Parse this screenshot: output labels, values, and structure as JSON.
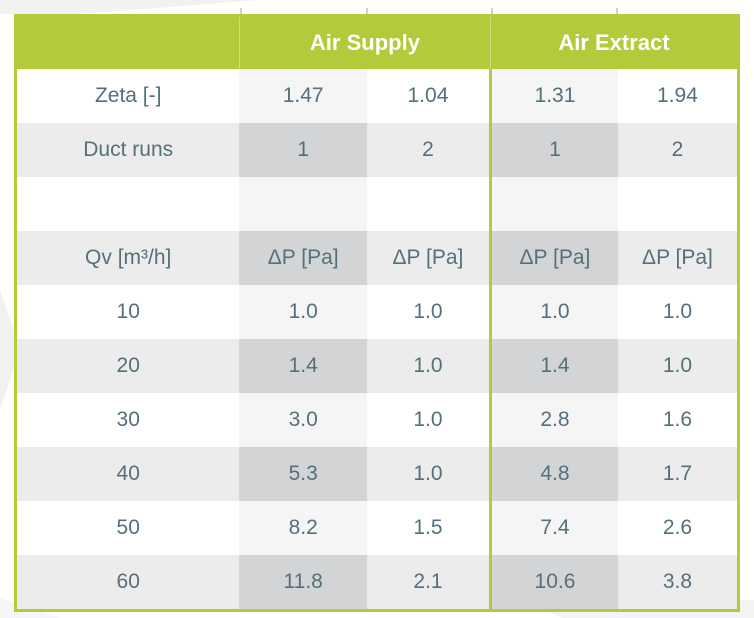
{
  "colors": {
    "lime": "#b5ca3b",
    "text": "#54707c",
    "header-text": "#ffffff",
    "row-light": "#ffffff",
    "row-light-tint": "#f5f5f5",
    "row-gray": "#ececec",
    "row-gray-tint": "#d2d4d5"
  },
  "table": {
    "header": {
      "supply": "Air Supply",
      "extract": "Air Extract"
    },
    "rows": [
      {
        "label": "Zeta [-]",
        "values": [
          "1.47",
          "1.04",
          "1.31",
          "1.94"
        ]
      },
      {
        "label": "Duct runs",
        "values": [
          "1",
          "2",
          "1",
          "2"
        ]
      },
      {
        "label": "",
        "values": [
          "",
          "",
          "",
          ""
        ]
      },
      {
        "label": "Qv [m³/h]",
        "values": [
          "ΔP [Pa]",
          "ΔP [Pa]",
          "ΔP [Pa]",
          "ΔP [Pa]"
        ]
      },
      {
        "label": "10",
        "values": [
          "1.0",
          "1.0",
          "1.0",
          "1.0"
        ]
      },
      {
        "label": "20",
        "values": [
          "1.4",
          "1.0",
          "1.4",
          "1.0"
        ]
      },
      {
        "label": "30",
        "values": [
          "3.0",
          "1.0",
          "2.8",
          "1.6"
        ]
      },
      {
        "label": "40",
        "values": [
          "5.3",
          "1.0",
          "4.8",
          "1.7"
        ]
      },
      {
        "label": "50",
        "values": [
          "8.2",
          "1.5",
          "7.4",
          "2.6"
        ]
      },
      {
        "label": "60",
        "values": [
          "11.8",
          "2.1",
          "10.6",
          "3.8"
        ]
      }
    ]
  }
}
